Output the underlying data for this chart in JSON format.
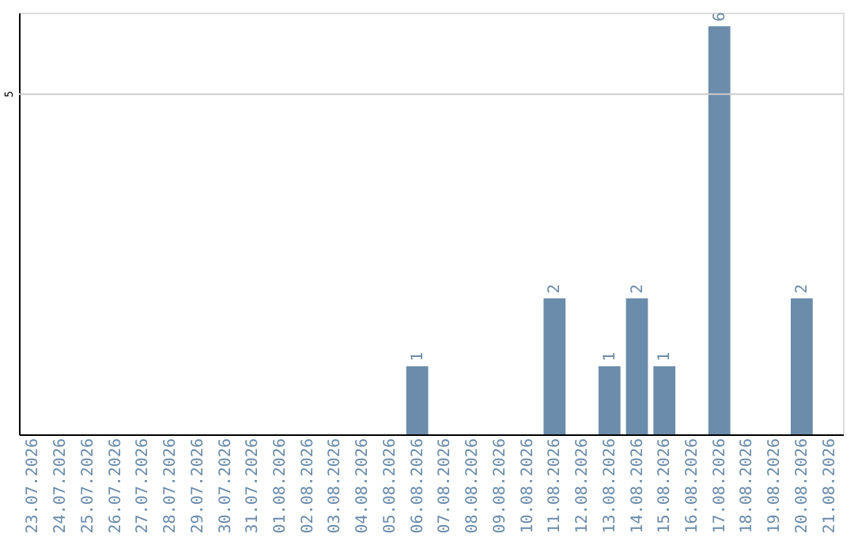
{
  "chart_data": {
    "type": "bar",
    "categories": [
      "23.07.2026",
      "24.07.2026",
      "25.07.2026",
      "26.07.2026",
      "27.07.2026",
      "28.07.2026",
      "29.07.2026",
      "30.07.2026",
      "31.07.2026",
      "01.08.2026",
      "02.08.2026",
      "03.08.2026",
      "04.08.2026",
      "05.08.2026",
      "06.08.2026",
      "07.08.2026",
      "08.08.2026",
      "09.08.2026",
      "10.08.2026",
      "11.08.2026",
      "12.08.2026",
      "13.08.2026",
      "14.08.2026",
      "15.08.2026",
      "16.08.2026",
      "17.08.2026",
      "18.08.2026",
      "19.08.2026",
      "20.08.2026",
      "21.08.2026"
    ],
    "values": [
      null,
      null,
      null,
      null,
      null,
      null,
      null,
      null,
      null,
      null,
      null,
      null,
      null,
      null,
      1,
      null,
      null,
      null,
      null,
      2,
      null,
      1,
      2,
      1,
      null,
      6,
      null,
      null,
      2,
      null
    ],
    "data_labels": true,
    "color": "#6b8cab",
    "ylim": [
      0,
      6.2
    ],
    "ref_lines": [
      {
        "axis": "y",
        "value": 5,
        "label": "5",
        "color": "#cccccc"
      }
    ]
  }
}
